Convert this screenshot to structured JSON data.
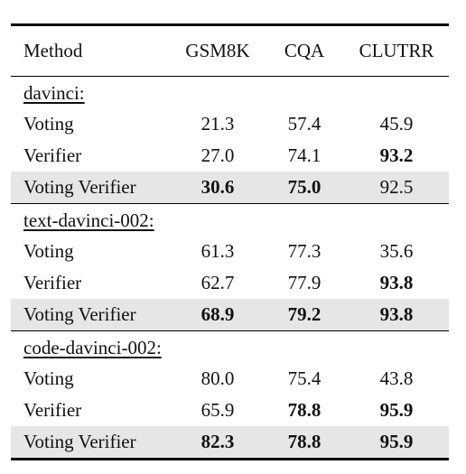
{
  "table": {
    "columns": [
      "Method",
      "GSM8K",
      "CQA",
      "CLUTRR"
    ],
    "groups": [
      {
        "name": "davinci:",
        "rows": [
          {
            "method": "Voting",
            "gsm8k": "21.3",
            "cqa": "57.4",
            "clutrr": "45.9",
            "bold": [],
            "shaded": false
          },
          {
            "method": "Verifier",
            "gsm8k": "27.0",
            "cqa": "74.1",
            "clutrr": "93.2",
            "bold": [
              "clutrr"
            ],
            "shaded": false
          },
          {
            "method": "Voting Verifier",
            "gsm8k": "30.6",
            "cqa": "75.0",
            "clutrr": "92.5",
            "bold": [
              "gsm8k",
              "cqa"
            ],
            "shaded": true
          }
        ]
      },
      {
        "name": "text-davinci-002:",
        "rows": [
          {
            "method": "Voting",
            "gsm8k": "61.3",
            "cqa": "77.3",
            "clutrr": "35.6",
            "bold": [],
            "shaded": false
          },
          {
            "method": "Verifier",
            "gsm8k": "62.7",
            "cqa": "77.9",
            "clutrr": "93.8",
            "bold": [
              "clutrr"
            ],
            "shaded": false
          },
          {
            "method": "Voting Verifier",
            "gsm8k": "68.9",
            "cqa": "79.2",
            "clutrr": "93.8",
            "bold": [
              "gsm8k",
              "cqa",
              "clutrr"
            ],
            "shaded": true
          }
        ]
      },
      {
        "name": "code-davinci-002:",
        "rows": [
          {
            "method": "Voting",
            "gsm8k": "80.0",
            "cqa": "75.4",
            "clutrr": "43.8",
            "bold": [],
            "shaded": false
          },
          {
            "method": "Verifier",
            "gsm8k": "65.9",
            "cqa": "78.8",
            "clutrr": "95.9",
            "bold": [
              "cqa",
              "clutrr"
            ],
            "shaded": false
          },
          {
            "method": "Voting Verifier",
            "gsm8k": "82.3",
            "cqa": "78.8",
            "clutrr": "95.9",
            "bold": [
              "gsm8k",
              "cqa",
              "clutrr"
            ],
            "shaded": true
          }
        ]
      }
    ],
    "shade_color": "#e6e6e6"
  }
}
